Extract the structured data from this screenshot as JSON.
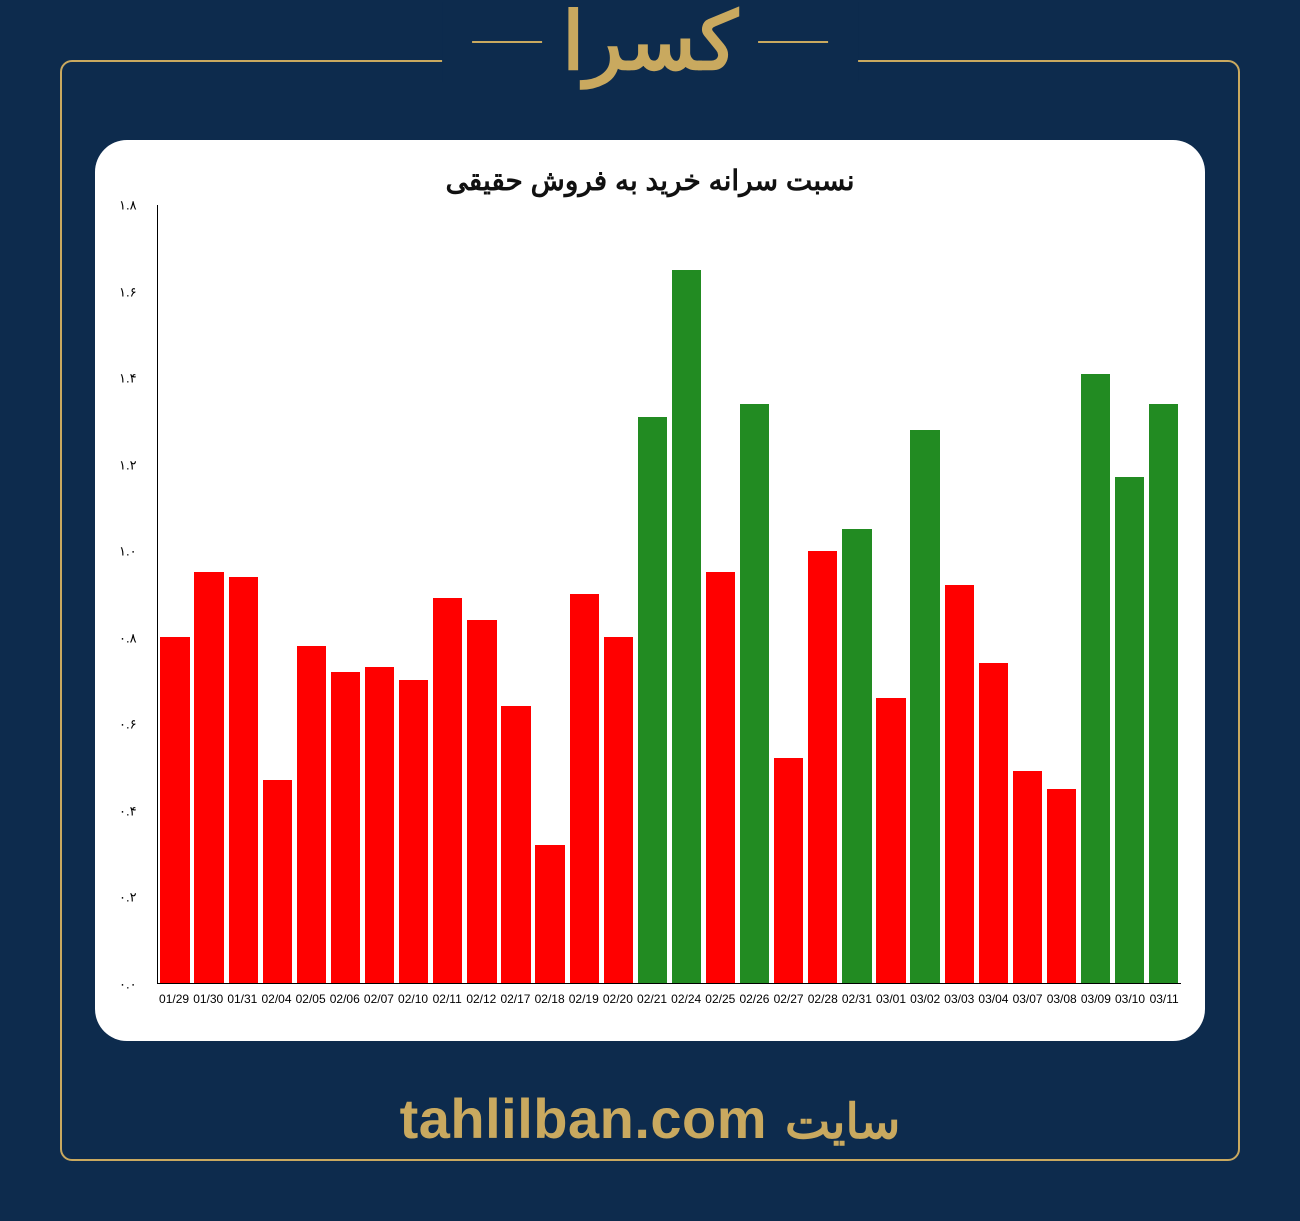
{
  "header": {
    "title": "کسرا",
    "title_color": "#c9a95f"
  },
  "frame": {
    "border_color": "#c9a95f",
    "background_color": "#0d2b4d"
  },
  "chart": {
    "type": "bar",
    "title": "نسبت سرانه خرید به فروش حقیقی",
    "title_fontsize": 28,
    "title_color": "#111111",
    "card_background": "#ffffff",
    "card_radius": 32,
    "ylim": [
      0.0,
      1.8
    ],
    "ytick_step": 0.2,
    "yticks": [
      {
        "v": 0.0,
        "label": "۰.۰"
      },
      {
        "v": 0.2,
        "label": "۰.۲"
      },
      {
        "v": 0.4,
        "label": "۰.۴"
      },
      {
        "v": 0.6,
        "label": "۰.۶"
      },
      {
        "v": 0.8,
        "label": "۰.۸"
      },
      {
        "v": 1.0,
        "label": "۱.۰"
      },
      {
        "v": 1.2,
        "label": "۱.۲"
      },
      {
        "v": 1.4,
        "label": "۱.۴"
      },
      {
        "v": 1.6,
        "label": "۱.۶"
      },
      {
        "v": 1.8,
        "label": "۱.۸"
      }
    ],
    "categories": [
      "01/29",
      "01/30",
      "01/31",
      "02/04",
      "02/05",
      "02/06",
      "02/07",
      "02/10",
      "02/11",
      "02/12",
      "02/17",
      "02/18",
      "02/19",
      "02/20",
      "02/21",
      "02/24",
      "02/25",
      "02/26",
      "02/27",
      "02/28",
      "02/31",
      "03/01",
      "03/02",
      "03/03",
      "03/04",
      "03/07",
      "03/08",
      "03/09",
      "03/10",
      "03/11"
    ],
    "values": [
      0.8,
      0.95,
      0.94,
      0.47,
      0.78,
      0.72,
      0.73,
      0.7,
      0.89,
      0.84,
      0.64,
      0.32,
      0.9,
      0.8,
      1.31,
      1.65,
      0.95,
      1.34,
      0.52,
      1.0,
      1.05,
      0.66,
      1.28,
      0.92,
      0.74,
      0.49,
      0.45,
      1.41,
      1.17,
      1.34
    ],
    "bar_colors": [
      "#ff0000",
      "#ff0000",
      "#ff0000",
      "#ff0000",
      "#ff0000",
      "#ff0000",
      "#ff0000",
      "#ff0000",
      "#ff0000",
      "#ff0000",
      "#ff0000",
      "#ff0000",
      "#ff0000",
      "#ff0000",
      "#228b22",
      "#228b22",
      "#ff0000",
      "#228b22",
      "#ff0000",
      "#ff0000",
      "#228b22",
      "#ff0000",
      "#228b22",
      "#ff0000",
      "#ff0000",
      "#ff0000",
      "#ff0000",
      "#228b22",
      "#228b22",
      "#228b22"
    ],
    "bar_width": 0.86,
    "axis_color": "#000000",
    "label_fontsize_x": 12,
    "label_fontsize_y": 13
  },
  "footer": {
    "label": "سایت",
    "domain": "tahlilban.com",
    "color": "#c9a95f",
    "label_fontsize": 48,
    "domain_fontsize": 56
  }
}
